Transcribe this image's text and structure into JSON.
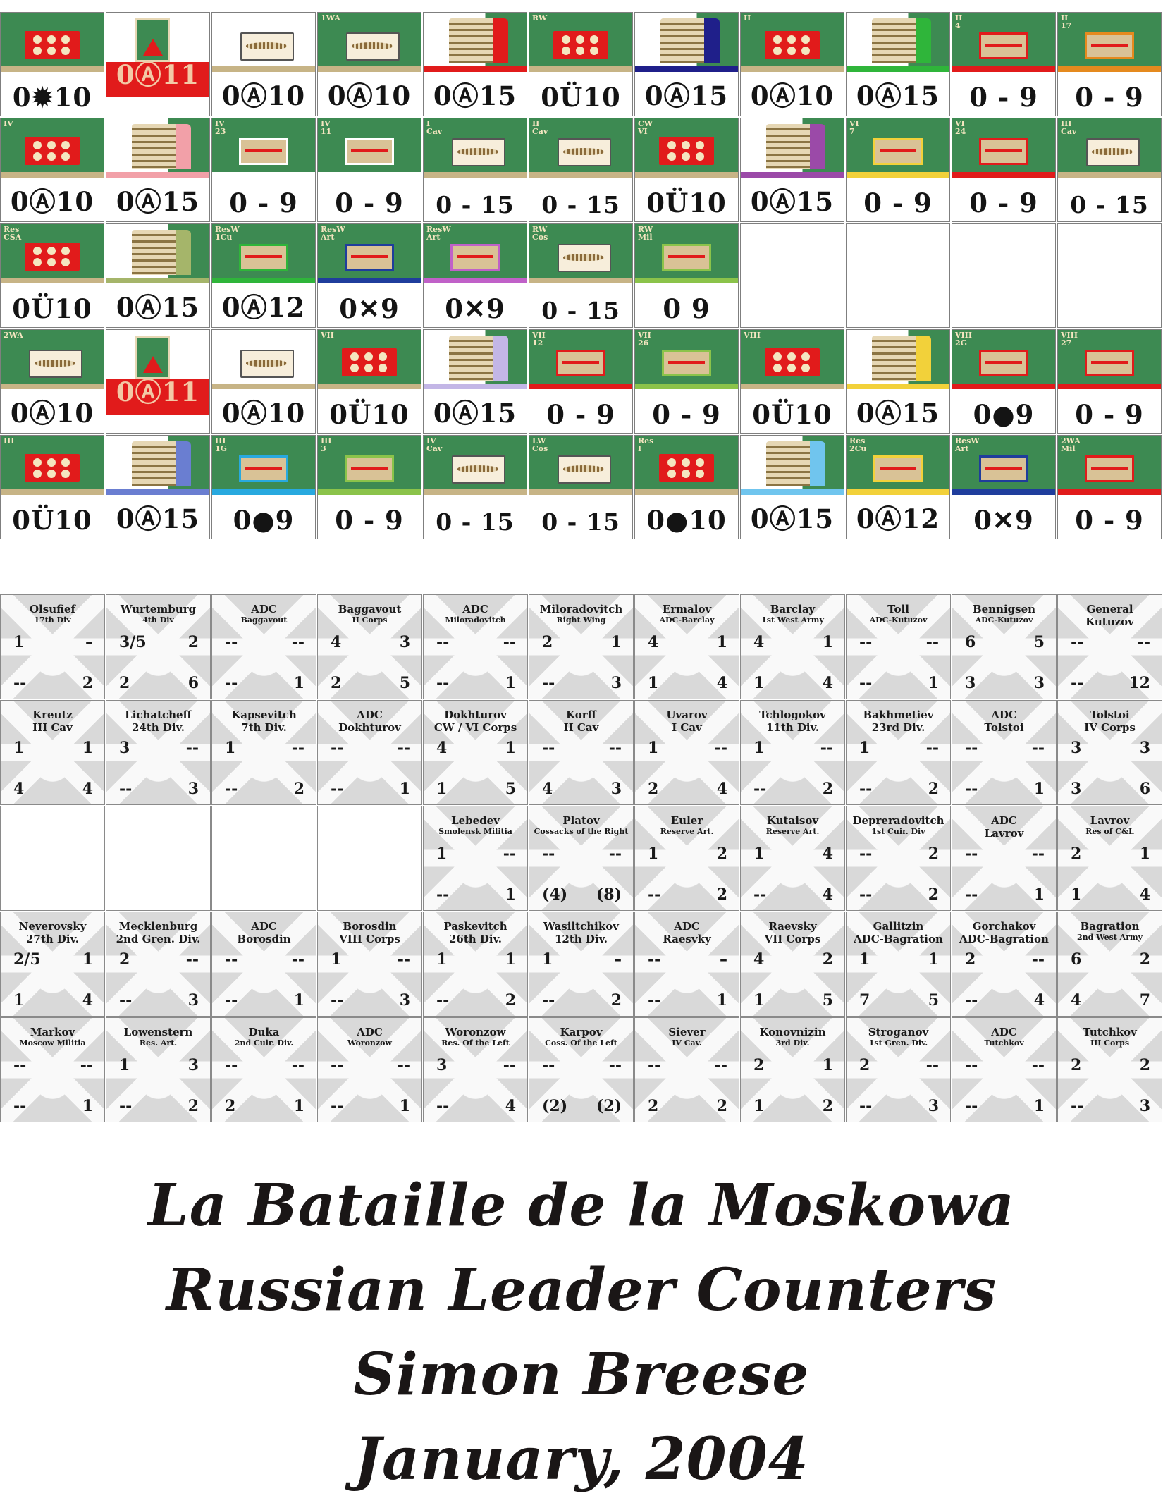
{
  "unit_counters": [
    {
      "top": "",
      "stats": "0✹10",
      "style": "art"
    },
    {
      "top": "",
      "stats": "0Ⓐ11",
      "style": "flag"
    },
    {
      "top": "",
      "stats": "0Ⓐ10",
      "style": "plume"
    },
    {
      "top": "1WA",
      "stats": "0Ⓐ10",
      "style": "plume"
    },
    {
      "top": "",
      "stats": "0Ⓐ15",
      "style": "coat",
      "coat": "#e11b1b"
    },
    {
      "top": "RW",
      "stats": "0Ü10",
      "style": "art"
    },
    {
      "top": "",
      "stats": "0Ⓐ15",
      "style": "coat",
      "coat": "#1f1f8a"
    },
    {
      "top": "II",
      "stats": "0Ⓐ10",
      "style": "art"
    },
    {
      "top": "",
      "stats": "0Ⓐ15",
      "style": "coat",
      "coat": "#2fb53a"
    },
    {
      "top": "II\n4",
      "stats": "0 - 9",
      "style": "hq",
      "hq": "red"
    },
    {
      "top": "II\n17",
      "stats": "0 - 9",
      "style": "hq",
      "hq": "orange"
    },
    {
      "top": "IV",
      "stats": "0Ⓐ10",
      "style": "art"
    },
    {
      "top": "",
      "stats": "0Ⓐ15",
      "style": "coat",
      "coat": "#f2a0a8"
    },
    {
      "top": "IV\n23",
      "stats": "0 - 9",
      "style": "hq",
      "hq": "white"
    },
    {
      "top": "IV\n11",
      "stats": "0 - 9",
      "style": "hq",
      "hq": "white"
    },
    {
      "top": "I\nCav",
      "stats": "0 - 15",
      "style": "plume"
    },
    {
      "top": "II\nCav",
      "stats": "0 - 15",
      "style": "plume"
    },
    {
      "top": "CW\nVI",
      "stats": "0Ü10",
      "style": "art"
    },
    {
      "top": "",
      "stats": "0Ⓐ15",
      "style": "coat",
      "coat": "#9b4aa8"
    },
    {
      "top": "VI\n7",
      "stats": "0 - 9",
      "style": "hq",
      "hq": "yellow"
    },
    {
      "top": "VI\n24",
      "stats": "0 - 9",
      "style": "hq",
      "hq": "red"
    },
    {
      "top": "III\nCav",
      "stats": "0 - 15",
      "style": "plume"
    },
    {
      "top": "Res\nCSA",
      "stats": "0Ü10",
      "style": "art"
    },
    {
      "top": "",
      "stats": "0Ⓐ15",
      "style": "coat",
      "coat": "#a5b56a"
    },
    {
      "top": "ResW\n1Cu",
      "stats": "0Ⓐ12",
      "style": "hq",
      "hq": "green"
    },
    {
      "top": "ResW\nArt",
      "stats": "0✕9",
      "style": "hq",
      "hq": "blue"
    },
    {
      "top": "ResW\nArt",
      "stats": "0✕9",
      "style": "hq",
      "hq": "pink"
    },
    {
      "top": "RW\nCos",
      "stats": "0 - 15",
      "style": "plume"
    },
    {
      "top": "RW\nMil",
      "stats": "0   9",
      "style": "hq",
      "hq": "lime"
    },
    {
      "top": "",
      "stats": "",
      "style": "empty"
    },
    {
      "top": "",
      "stats": "",
      "style": "empty"
    },
    {
      "top": "",
      "stats": "",
      "style": "empty"
    },
    {
      "top": "",
      "stats": "",
      "style": "empty"
    },
    {
      "top": "2WA",
      "stats": "0Ⓐ10",
      "style": "plume"
    },
    {
      "top": "",
      "stats": "0Ⓐ11",
      "style": "flag"
    },
    {
      "top": "",
      "stats": "0Ⓐ10",
      "style": "plume"
    },
    {
      "top": "VII",
      "stats": "0Ü10",
      "style": "art"
    },
    {
      "top": "",
      "stats": "0Ⓐ15",
      "style": "coat",
      "coat": "#c3b6e6"
    },
    {
      "top": "VII\n12",
      "stats": "0 - 9",
      "style": "hq",
      "hq": "red"
    },
    {
      "top": "VII\n26",
      "stats": "0 - 9",
      "style": "hq",
      "hq": "lime"
    },
    {
      "top": "VIII",
      "stats": "0Ü10",
      "style": "art"
    },
    {
      "top": "",
      "stats": "0Ⓐ15",
      "style": "coat",
      "coat": "#f2d13a"
    },
    {
      "top": "VIII\n2G",
      "stats": "0●9",
      "style": "hq",
      "hq": "red"
    },
    {
      "top": "VIII\n27",
      "stats": "0 - 9",
      "style": "hq",
      "hq": "red"
    },
    {
      "top": "III",
      "stats": "0Ü10",
      "style": "art"
    },
    {
      "top": "",
      "stats": "0Ⓐ15",
      "style": "coat",
      "coat": "#6a7ed1"
    },
    {
      "top": "III\n1G",
      "stats": "0●9",
      "style": "hq",
      "hq": "cyan"
    },
    {
      "top": "III\n3",
      "stats": "0 - 9",
      "style": "hq",
      "hq": "lime"
    },
    {
      "top": "IV\nCav",
      "stats": "0 - 15",
      "style": "plume"
    },
    {
      "top": "LW\nCos",
      "stats": "0 - 15",
      "style": "plume"
    },
    {
      "top": "Res\nI",
      "stats": "0●10",
      "style": "art"
    },
    {
      "top": "",
      "stats": "0Ⓐ15",
      "style": "coat",
      "coat": "#70c5ee"
    },
    {
      "top": "Res\n2Cu",
      "stats": "0Ⓐ12",
      "style": "hq",
      "hq": "yellow"
    },
    {
      "top": "ResW\nArt",
      "stats": "0✕9",
      "style": "hq",
      "hq": "blue"
    },
    {
      "top": "2WA\nMil",
      "stats": "0 - 9",
      "style": "hq",
      "hq": "red"
    }
  ],
  "leaders": [
    {
      "name": "Olsufief",
      "sub": "17th Div",
      "tl": "1",
      "tr": "–",
      "bl": "--",
      "br": "2"
    },
    {
      "name": "Wurtemburg",
      "sub": "4th Div",
      "tl": "3/5",
      "tr": "2",
      "bl": "2",
      "br": "6"
    },
    {
      "name": "ADC",
      "sub": "Baggavout",
      "tl": "--",
      "tr": "--",
      "bl": "--",
      "br": "1"
    },
    {
      "name": "Baggavout",
      "sub": "II Corps",
      "tl": "4",
      "tr": "3",
      "bl": "2",
      "br": "5"
    },
    {
      "name": "ADC",
      "sub": "Miloradovitch",
      "tl": "--",
      "tr": "--",
      "bl": "--",
      "br": "1"
    },
    {
      "name": "Miloradovitch",
      "sub": "Right Wing",
      "tl": "2",
      "tr": "1",
      "bl": "--",
      "br": "3"
    },
    {
      "name": "Ermalov",
      "sub": "ADC-Barclay",
      "tl": "4",
      "tr": "1",
      "bl": "1",
      "br": "4"
    },
    {
      "name": "Barclay",
      "sub": "1st West Army",
      "tl": "4",
      "tr": "1",
      "bl": "1",
      "br": "4"
    },
    {
      "name": "Toll",
      "sub": "ADC-Kutuzov",
      "tl": "--",
      "tr": "--",
      "bl": "--",
      "br": "1"
    },
    {
      "name": "Bennigsen",
      "sub": "ADC-Kutuzov",
      "tl": "6",
      "tr": "5",
      "bl": "3",
      "br": "3"
    },
    {
      "name": "General",
      "sub": "Kutuzov",
      "subbig": true,
      "tl": "--",
      "tr": "--",
      "bl": "--",
      "br": "12"
    },
    {
      "name": "Kreutz",
      "sub": "III Cav",
      "subbig": true,
      "tl": "1",
      "tr": "1",
      "bl": "4",
      "br": "4"
    },
    {
      "name": "Lichatcheff",
      "sub": "24th Div.",
      "subbig": true,
      "tl": "3",
      "tr": "--",
      "bl": "--",
      "br": "3"
    },
    {
      "name": "Kapsevitch",
      "sub": "7th Div.",
      "subbig": true,
      "tl": "1",
      "tr": "--",
      "bl": "--",
      "br": "2"
    },
    {
      "name": "ADC",
      "sub": "Dokhturov",
      "subbig": true,
      "tl": "--",
      "tr": "--",
      "bl": "--",
      "br": "1"
    },
    {
      "name": "Dokhturov",
      "sub": "CW / VI Corps",
      "subbig": true,
      "tl": "4",
      "tr": "1",
      "bl": "1",
      "br": "5"
    },
    {
      "name": "Korff",
      "sub": "II Cav",
      "subbig": true,
      "tl": "--",
      "tr": "--",
      "bl": "4",
      "br": "3"
    },
    {
      "name": "Uvarov",
      "sub": "I Cav",
      "subbig": true,
      "tl": "1",
      "tr": "--",
      "bl": "2",
      "br": "4"
    },
    {
      "name": "Tchlogokov",
      "sub": "11th Div.",
      "subbig": true,
      "tl": "1",
      "tr": "--",
      "bl": "--",
      "br": "2"
    },
    {
      "name": "Bakhmetiev",
      "sub": "23rd Div.",
      "subbig": true,
      "tl": "1",
      "tr": "--",
      "bl": "--",
      "br": "2"
    },
    {
      "name": "ADC",
      "sub": "Tolstoi",
      "subbig": true,
      "tl": "--",
      "tr": "--",
      "bl": "--",
      "br": "1"
    },
    {
      "name": "Tolstoi",
      "sub": "IV Corps",
      "subbig": true,
      "tl": "3",
      "tr": "3",
      "bl": "3",
      "br": "6"
    },
    {
      "empty": true
    },
    {
      "empty": true
    },
    {
      "empty": true
    },
    {
      "empty": true
    },
    {
      "name": "Lebedev",
      "sub": "Smolensk Militia",
      "tl": "1",
      "tr": "--",
      "bl": "--",
      "br": "1"
    },
    {
      "name": "Platov",
      "sub": "Cossacks of the Right",
      "tl": "--",
      "tr": "--",
      "bl": "(4)",
      "br": "(8)"
    },
    {
      "name": "Euler",
      "sub": "Reserve Art.",
      "tl": "1",
      "tr": "2",
      "bl": "--",
      "br": "2"
    },
    {
      "name": "Kutaisov",
      "sub": "Reserve Art.",
      "tl": "1",
      "tr": "4",
      "bl": "--",
      "br": "4"
    },
    {
      "name": "Depreradovitch",
      "sub": "1st Cuir. Div",
      "tl": "--",
      "tr": "2",
      "bl": "--",
      "br": "2"
    },
    {
      "name": "ADC",
      "sub": "Lavrov",
      "subbig": true,
      "tl": "--",
      "tr": "--",
      "bl": "--",
      "br": "1"
    },
    {
      "name": "Lavrov",
      "sub": "Res of C&L",
      "tl": "2",
      "tr": "1",
      "bl": "1",
      "br": "4"
    },
    {
      "name": "Neverovsky",
      "sub": "27th Div.",
      "subbig": true,
      "tl": "2/5",
      "tr": "1",
      "bl": "1",
      "br": "4"
    },
    {
      "name": "Mecklenburg",
      "sub": "2nd Gren. Div.",
      "subbig": true,
      "tl": "2",
      "tr": "--",
      "bl": "--",
      "br": "3"
    },
    {
      "name": "ADC",
      "sub": "Borosdin",
      "subbig": true,
      "tl": "--",
      "tr": "--",
      "bl": "--",
      "br": "1"
    },
    {
      "name": "Borosdin",
      "sub": "VIII Corps",
      "subbig": true,
      "tl": "1",
      "tr": "--",
      "bl": "--",
      "br": "3"
    },
    {
      "name": "Paskevitch",
      "sub": "26th Div.",
      "subbig": true,
      "tl": "1",
      "tr": "1",
      "bl": "--",
      "br": "2"
    },
    {
      "name": "Wasiltchikov",
      "sub": "12th Div.",
      "subbig": true,
      "tl": "1",
      "tr": "–",
      "bl": "--",
      "br": "2"
    },
    {
      "name": "ADC",
      "sub": "Raesvky",
      "subbig": true,
      "tl": "--",
      "tr": "–",
      "bl": "--",
      "br": "1"
    },
    {
      "name": "Raevsky",
      "sub": "VII Corps",
      "subbig": true,
      "tl": "4",
      "tr": "2",
      "bl": "1",
      "br": "5"
    },
    {
      "name": "Gallitzin",
      "sub": "ADC-Bagration",
      "subbig": true,
      "tl": "1",
      "tr": "1",
      "bl": "7",
      "br": "5"
    },
    {
      "name": "Gorchakov",
      "sub": "ADC-Bagration",
      "subbig": true,
      "tl": "2",
      "tr": "--",
      "bl": "--",
      "br": "4"
    },
    {
      "name": "Bagration",
      "sub": "2nd West Army",
      "tl": "6",
      "tr": "2",
      "bl": "4",
      "br": "7"
    },
    {
      "name": "Markov",
      "sub": "Moscow Militia",
      "tl": "--",
      "tr": "--",
      "bl": "--",
      "br": "1"
    },
    {
      "name": "Lowenstern",
      "sub": "Res. Art.",
      "tl": "1",
      "tr": "3",
      "bl": "--",
      "br": "2"
    },
    {
      "name": "Duka",
      "sub": "2nd Cuir. Div.",
      "tl": "--",
      "tr": "--",
      "bl": "2",
      "br": "1"
    },
    {
      "name": "ADC",
      "sub": "Woronzow",
      "tl": "--",
      "tr": "--",
      "bl": "--",
      "br": "1"
    },
    {
      "name": "Woronzow",
      "sub": "Res. Of the Left",
      "tl": "3",
      "tr": "--",
      "bl": "--",
      "br": "4"
    },
    {
      "name": "Karpov",
      "sub": "Coss. Of the Left",
      "tl": "--",
      "tr": "--",
      "bl": "(2)",
      "br": "(2)"
    },
    {
      "name": "Siever",
      "sub": "IV Cav.",
      "tl": "--",
      "tr": "--",
      "bl": "2",
      "br": "2"
    },
    {
      "name": "Konovnizin",
      "sub": "3rd Div.",
      "tl": "2",
      "tr": "1",
      "bl": "1",
      "br": "2"
    },
    {
      "name": "Stroganov",
      "sub": "1st Gren. Div.",
      "tl": "2",
      "tr": "--",
      "bl": "--",
      "br": "3"
    },
    {
      "name": "ADC",
      "sub": "Tutchkov",
      "tl": "--",
      "tr": "--",
      "bl": "--",
      "br": "1"
    },
    {
      "name": "Tutchkov",
      "sub": "III Corps",
      "tl": "2",
      "tr": "2",
      "bl": "--",
      "br": "3"
    }
  ],
  "title": {
    "line1": "La Bataille de la Moskowa",
    "line2": "Russian Leader Counters",
    "line3": "Simon Breese",
    "line4": "January, 2004"
  }
}
